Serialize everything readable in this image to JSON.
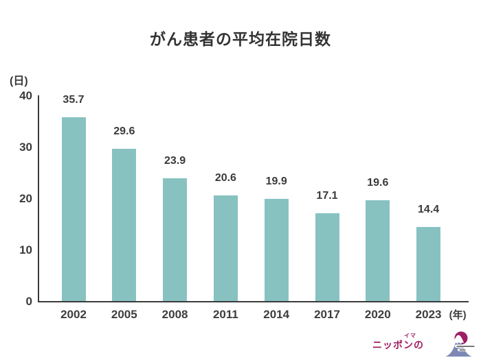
{
  "title": "がん患者の平均在院日数",
  "y_axis": {
    "unit_label": "(日)"
  },
  "x_axis": {
    "unit_label": "(年)"
  },
  "brand": {
    "name": "ニッポンの",
    "ruby": "イマ",
    "icon": "mount-fuji-sun-clouds-icon"
  },
  "colors": {
    "bar": "#87c2c1",
    "axis": "#3a3a3a",
    "text": "#3a3a3a",
    "brand_magenta": "#9e1f63",
    "mountain_blue": "#7e88b5",
    "background": "#ffffff"
  },
  "chart_data": {
    "type": "bar",
    "title": "がん患者の平均在院日数",
    "categories": [
      "2002",
      "2005",
      "2008",
      "2011",
      "2014",
      "2017",
      "2020",
      "2023"
    ],
    "values": [
      35.7,
      29.6,
      23.9,
      20.6,
      19.9,
      17.1,
      19.6,
      14.4
    ],
    "xlabel": "(年)",
    "ylabel": "(日)",
    "ylim": [
      0,
      40
    ],
    "yticks": [
      0,
      10,
      20,
      30,
      40
    ],
    "grid": false,
    "legend": null,
    "bar_color": "#87c2c1",
    "value_labels_shown": true
  }
}
